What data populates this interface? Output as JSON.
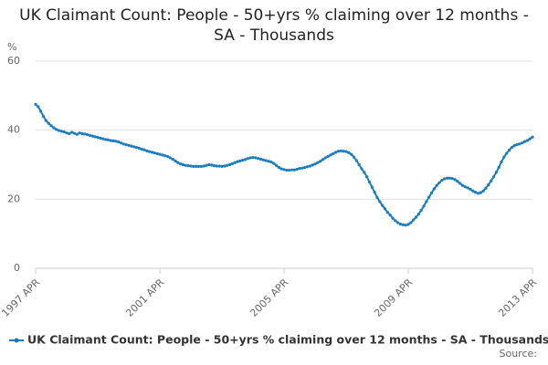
{
  "chart_data": {
    "type": "line",
    "title": "UK Claimant Count: People - 50+yrs % claiming over 12 months - SA - Thousands",
    "y_label": "%",
    "source_label": "Source:",
    "ylim": [
      0,
      60
    ],
    "yticks": [
      0,
      20,
      40,
      60
    ],
    "grid": true,
    "categories": [
      "1997 APR",
      null,
      null,
      null,
      null,
      null,
      null,
      null,
      null,
      null,
      null,
      null,
      null,
      null,
      null,
      null,
      null,
      null,
      null,
      null,
      null,
      null,
      null,
      null,
      null,
      null,
      null,
      null,
      null,
      null,
      null,
      null,
      null,
      null,
      null,
      null,
      null,
      null,
      null,
      null,
      null,
      null,
      null,
      null,
      null,
      null,
      null,
      null,
      "2001 APR",
      null,
      null,
      null,
      null,
      null,
      null,
      null,
      null,
      null,
      null,
      null,
      null,
      null,
      null,
      null,
      null,
      null,
      null,
      null,
      null,
      null,
      null,
      null,
      null,
      null,
      null,
      null,
      null,
      null,
      null,
      null,
      null,
      null,
      null,
      null,
      null,
      null,
      null,
      null,
      null,
      null,
      null,
      null,
      null,
      null,
      null,
      null,
      "2005 APR",
      null,
      null,
      null,
      null,
      null,
      null,
      null,
      null,
      null,
      null,
      null,
      null,
      null,
      null,
      null,
      null,
      null,
      null,
      null,
      null,
      null,
      null,
      null,
      null,
      null,
      null,
      null,
      null,
      null,
      null,
      null,
      null,
      null,
      null,
      null,
      null,
      null,
      null,
      null,
      null,
      null,
      null,
      null,
      null,
      null,
      null,
      null,
      "2009 APR",
      null,
      null,
      null,
      null,
      null,
      null,
      null,
      null,
      null,
      null,
      null,
      null,
      null,
      null,
      null,
      null,
      null,
      null,
      null,
      null,
      null,
      null,
      null,
      null,
      null,
      null,
      null,
      null,
      null,
      null,
      null,
      null,
      null,
      null,
      null,
      null,
      null,
      null,
      null,
      null,
      null,
      null,
      null,
      null,
      null,
      null,
      null,
      "2013 APR"
    ],
    "series": [
      {
        "name": "UK Claimant Count: People - 50+yrs % claiming over 12 months - SA - Thousands",
        "color": "#1a7dbf",
        "values": [
          47.5,
          46.8,
          45.5,
          44.0,
          42.8,
          42.0,
          41.3,
          40.7,
          40.2,
          39.9,
          39.7,
          39.5,
          39.2,
          39.0,
          39.4,
          39.1,
          38.8,
          39.2,
          39.0,
          38.9,
          38.7,
          38.5,
          38.3,
          38.1,
          37.9,
          37.7,
          37.5,
          37.3,
          37.2,
          37.0,
          36.9,
          36.8,
          36.6,
          36.3,
          36.0,
          35.8,
          35.6,
          35.4,
          35.2,
          35.0,
          34.8,
          34.5,
          34.3,
          34.0,
          33.8,
          33.6,
          33.4,
          33.2,
          33.0,
          32.8,
          32.6,
          32.4,
          32.0,
          31.6,
          31.1,
          30.6,
          30.2,
          30.0,
          29.8,
          29.7,
          29.6,
          29.5,
          29.5,
          29.5,
          29.5,
          29.6,
          29.8,
          30.0,
          29.9,
          29.7,
          29.6,
          29.6,
          29.5,
          29.6,
          29.8,
          30.0,
          30.3,
          30.6,
          30.9,
          31.1,
          31.3,
          31.5,
          31.8,
          32.0,
          32.1,
          32.0,
          31.8,
          31.6,
          31.4,
          31.2,
          31.0,
          30.8,
          30.4,
          29.8,
          29.2,
          28.8,
          28.6,
          28.4,
          28.4,
          28.5,
          28.5,
          28.7,
          28.9,
          29.0,
          29.2,
          29.4,
          29.6,
          29.9,
          30.2,
          30.6,
          31.0,
          31.5,
          32.0,
          32.4,
          32.8,
          33.2,
          33.6,
          33.9,
          34.0,
          33.9,
          33.8,
          33.5,
          33.0,
          32.2,
          31.2,
          30.0,
          28.8,
          27.8,
          26.5,
          25.0,
          23.5,
          22.0,
          20.5,
          19.3,
          18.2,
          17.2,
          16.2,
          15.4,
          14.5,
          13.8,
          13.2,
          12.8,
          12.6,
          12.5,
          12.7,
          13.2,
          14.0,
          14.8,
          15.7,
          16.8,
          18.0,
          19.3,
          20.6,
          21.8,
          23.0,
          24.0,
          24.8,
          25.5,
          25.9,
          26.1,
          26.1,
          26.0,
          25.7,
          25.2,
          24.6,
          24.0,
          23.6,
          23.3,
          22.9,
          22.4,
          22.0,
          21.7,
          21.9,
          22.4,
          23.2,
          24.2,
          25.3,
          26.5,
          27.8,
          29.2,
          30.8,
          32.2,
          33.3,
          34.2,
          35.0,
          35.5,
          35.8,
          36.0,
          36.3,
          36.7,
          37.0,
          37.5,
          38.0
        ]
      }
    ]
  }
}
